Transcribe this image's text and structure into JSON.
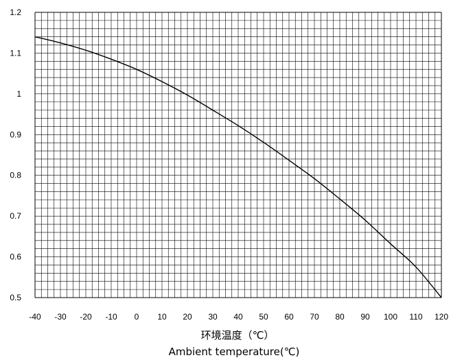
{
  "chart_data": {
    "type": "line",
    "title": "",
    "xlabel": "环境温度（℃）",
    "xlabel_en": "Ambient temperature(℃)",
    "ylabel": "",
    "xlim": [
      -40,
      120
    ],
    "ylim": [
      0.5,
      1.2
    ],
    "x_ticks": [
      "-40",
      "-30",
      "-20",
      "-10",
      "0",
      "10",
      "20",
      "30",
      "40",
      "50",
      "60",
      "70",
      "80",
      "90",
      "100",
      "110",
      "120"
    ],
    "y_ticks": [
      "0.5",
      "0.6",
      "0.7",
      "0.8",
      "0.9",
      "1",
      "1.1",
      "1.2"
    ],
    "grid": true,
    "grid_minor_x_step": 2.5,
    "grid_minor_y_step": 0.02,
    "legend": "none",
    "line_color": "#000000",
    "series": [
      {
        "x": [
          -40,
          -30,
          -20,
          -10,
          0,
          10,
          20,
          30,
          40,
          50,
          60,
          70,
          80,
          90,
          100,
          110,
          120
        ],
        "values": [
          1.14,
          1.125,
          1.107,
          1.085,
          1.06,
          1.03,
          0.997,
          0.96,
          0.922,
          0.881,
          0.837,
          0.792,
          0.742,
          0.69,
          0.632,
          0.575,
          0.5
        ]
      }
    ]
  }
}
